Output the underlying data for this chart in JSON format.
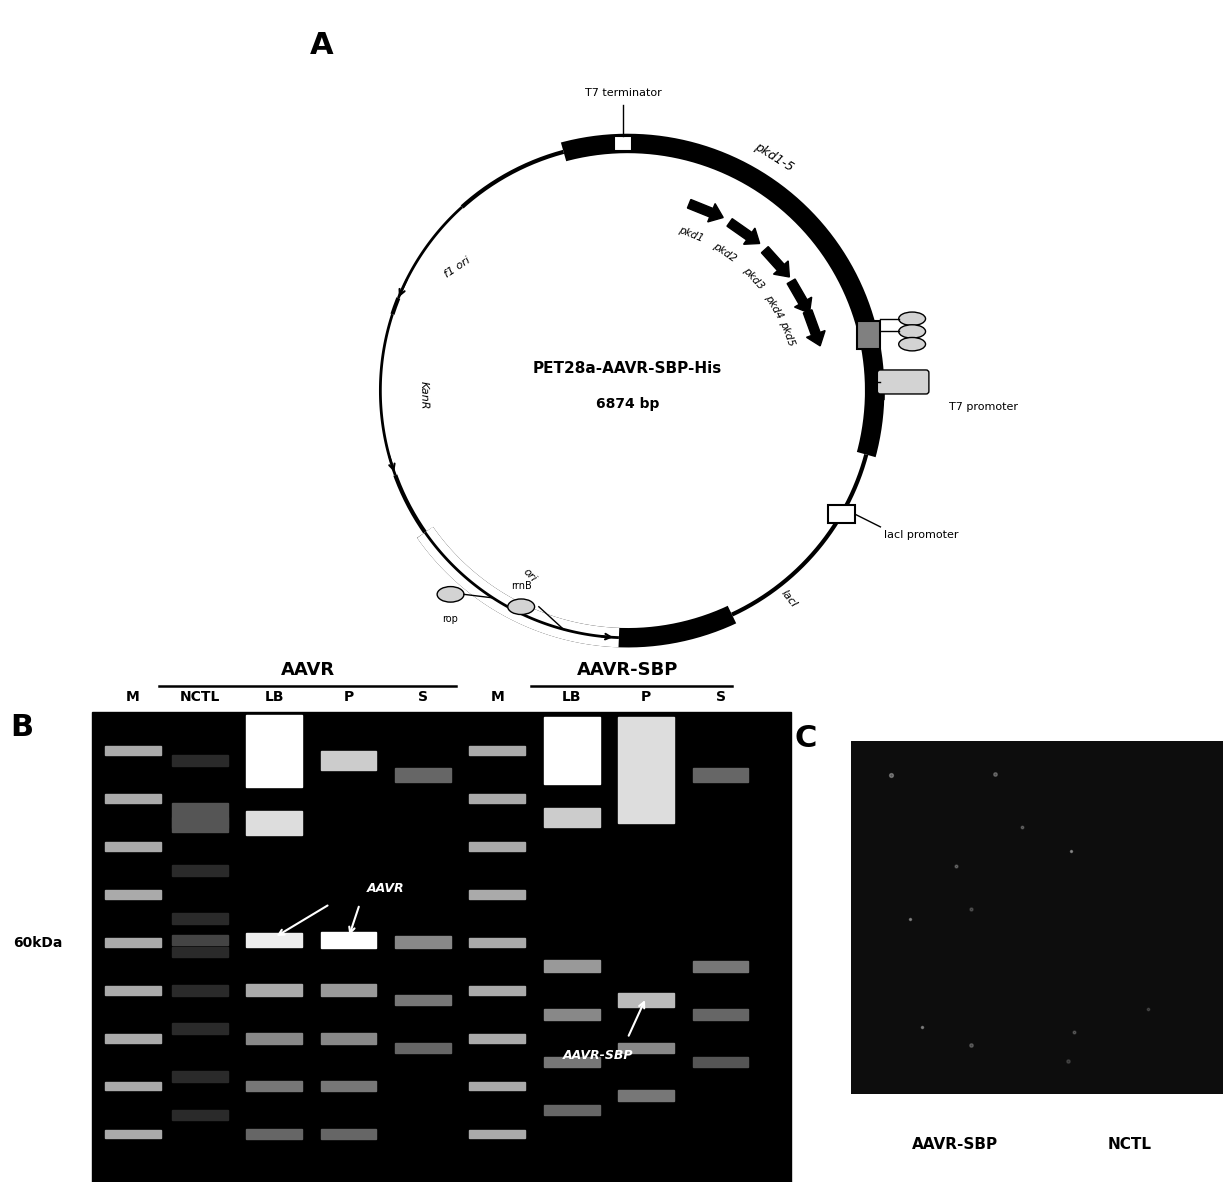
{
  "panel_A_label": "A",
  "panel_B_label": "B",
  "panel_C_label": "C",
  "plasmid_name": "PET28a-AAVR-SBP-His",
  "plasmid_size": "6874 bp",
  "t7_terminator": "T7 terminator",
  "t7_promoter": "T7 promoter",
  "lacI_promoter": "lacI promoter",
  "lacI_label": "lacI",
  "kanR_label": "KanR",
  "ori_label": "ori",
  "f1_ori_label": "f1 ori",
  "rop_label": "rop",
  "rrnB_label": "rrnB",
  "pkd_labels": [
    "pkd1",
    "pkd2",
    "pkd3",
    "pkd4",
    "pkd5"
  ],
  "pkd15_label": "pkd1-5",
  "gel_title_AAVR": "AAVR",
  "gel_title_AAVR_SBP": "AAVR-SBP",
  "gel_60kDa": "60kDa",
  "gel_AAVR_annotation": "AAVR",
  "gel_AAVR_SBP_annotation": "AAVR-SBP",
  "wb_label1": "AAVR-SBP",
  "wb_label2": "NCTL",
  "background_color": "#ffffff"
}
